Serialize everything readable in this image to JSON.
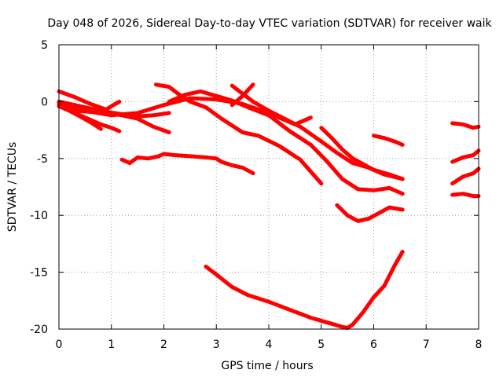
{
  "chart_data": {
    "type": "line",
    "title": "Day 048 of 2026, Sidereal Day-to-day VTEC variation (SDTVAR) for receiver waik",
    "xlabel": "GPS time / hours",
    "ylabel": "SDTVAR / TECUs",
    "xlim": [
      0,
      8
    ],
    "ylim": [
      -20,
      5
    ],
    "xticks": [
      0,
      1,
      2,
      3,
      4,
      5,
      6,
      7,
      8
    ],
    "yticks": [
      5,
      0,
      -5,
      -10,
      -15,
      -20
    ],
    "xtick_labels": [
      "0",
      "1",
      "2",
      "3",
      "4",
      "5",
      "6",
      "7",
      "8"
    ],
    "ytick_labels": [
      "5",
      "0",
      "-5",
      "-10",
      "-15",
      "-20"
    ],
    "grid": true,
    "color": "#ff0000",
    "series": [
      {
        "name": "s1",
        "x": [
          0,
          0.3,
          0.6,
          0.9,
          1.0,
          1.15
        ],
        "y": [
          0.9,
          0.4,
          -0.2,
          -0.7,
          -0.4,
          0
        ]
      },
      {
        "name": "s2",
        "x": [
          0,
          0.2,
          0.4,
          0.6,
          0.8,
          1.0,
          1.15
        ],
        "y": [
          -0.1,
          -0.6,
          -1.2,
          -1.6,
          -2.0,
          -2.3,
          -2.6
        ]
      },
      {
        "name": "s3",
        "x": [
          0,
          0.2,
          0.4,
          0.6,
          0.8
        ],
        "y": [
          -0.4,
          -0.8,
          -1.3,
          -1.8,
          -2.4
        ]
      },
      {
        "name": "s4",
        "x": [
          0,
          0.5,
          1.0,
          1.5,
          2.0,
          2.5,
          3.0,
          3.5,
          4.0,
          4.5,
          4.8
        ],
        "y": [
          -0.3,
          -0.8,
          -1.2,
          -1.0,
          -0.3,
          0.3,
          0.2,
          -0.2,
          -1.0,
          -2.0,
          -1.4
        ]
      },
      {
        "name": "s5",
        "x": [
          0,
          0.3,
          0.6,
          0.9,
          1.2,
          1.5,
          1.8,
          2.1
        ],
        "y": [
          0,
          -0.3,
          -0.6,
          -0.9,
          -1.1,
          -1.3,
          -1.2,
          -1.0
        ]
      },
      {
        "name": "s6",
        "x": [
          0.3,
          0.6,
          0.9,
          1.2,
          1.5,
          1.8,
          2.1
        ],
        "y": [
          -0.8,
          -0.9,
          -1.0,
          -1.2,
          -1.5,
          -2.2,
          -2.7
        ]
      },
      {
        "name": "s7",
        "x": [
          1.2,
          1.35,
          1.5,
          1.7,
          1.9,
          2.0,
          2.2,
          2.5,
          2.8,
          3.0,
          3.1,
          3.3,
          3.5,
          3.7
        ],
        "y": [
          -5.1,
          -5.4,
          -4.9,
          -5.0,
          -4.8,
          -4.6,
          -4.7,
          -4.8,
          -4.9,
          -5.0,
          -5.3,
          -5.6,
          -5.8,
          -6.3
        ]
      },
      {
        "name": "s8",
        "x": [
          1.85,
          2.1,
          2.3,
          2.5,
          2.8,
          3.1,
          3.5,
          3.8,
          4.2,
          4.6,
          5.0
        ],
        "y": [
          1.5,
          1.3,
          0.6,
          0,
          -0.5,
          -1.5,
          -2.7,
          -3.0,
          -3.9,
          -5.1,
          -7.2
        ]
      },
      {
        "name": "s9",
        "x": [
          2.1,
          2.4,
          2.7,
          3.0,
          3.3,
          3.6,
          4.0,
          4.4,
          4.8,
          5.1,
          5.4,
          5.7,
          6.0,
          6.3,
          6.55
        ],
        "y": [
          0,
          0.6,
          0.9,
          0.5,
          0.1,
          -0.5,
          -1.2,
          -2.6,
          -3.8,
          -5.2,
          -6.8,
          -7.7,
          -7.8,
          -7.6,
          -8.1
        ]
      },
      {
        "name": "s10",
        "x": [
          3.3,
          3.7,
          4.0,
          4.3,
          4.6,
          5.0,
          5.3,
          5.6,
          5.9,
          6.2,
          6.55
        ],
        "y": [
          1.4,
          0,
          -0.8,
          -1.5,
          -2.2,
          -3.5,
          -4.5,
          -5.4,
          -5.8,
          -6.4,
          -6.8
        ]
      },
      {
        "name": "s11",
        "x": [
          3.3,
          3.5,
          3.7
        ],
        "y": [
          -0.3,
          0.5,
          1.5
        ]
      },
      {
        "name": "s12",
        "x": [
          5.0,
          5.2,
          5.4,
          5.6,
          5.8,
          6.0,
          6.3,
          6.55
        ],
        "y": [
          -2.3,
          -3.2,
          -4.2,
          -5.0,
          -5.5,
          -6.0,
          -6.4,
          -6.8
        ]
      },
      {
        "name": "s13",
        "x": [
          5.3,
          5.5,
          5.7,
          5.9,
          6.1,
          6.3,
          6.55
        ],
        "y": [
          -9.1,
          -10.0,
          -10.5,
          -10.3,
          -9.8,
          -9.3,
          -9.5
        ]
      },
      {
        "name": "s14",
        "x": [
          2.8,
          3.0,
          3.3,
          3.6,
          4.0,
          4.4,
          4.8,
          5.1,
          5.4,
          5.5,
          5.6,
          5.8,
          6.0,
          6.2,
          6.4,
          6.55
        ],
        "y": [
          -14.5,
          -15.2,
          -16.3,
          -17.0,
          -17.6,
          -18.3,
          -19.0,
          -19.4,
          -19.8,
          -19.9,
          -19.6,
          -18.5,
          -17.2,
          -16.2,
          -14.4,
          -13.2
        ]
      },
      {
        "name": "s15",
        "x": [
          6.0,
          6.2,
          6.4,
          6.55
        ],
        "y": [
          -3.0,
          -3.2,
          -3.5,
          -3.8
        ]
      },
      {
        "name": "s16",
        "x": [
          7.5,
          7.7,
          7.9,
          8.0
        ],
        "y": [
          -1.9,
          -2.0,
          -2.3,
          -2.2
        ]
      },
      {
        "name": "s17",
        "x": [
          7.5,
          7.7,
          7.9,
          8.0
        ],
        "y": [
          -5.3,
          -4.9,
          -4.7,
          -4.3
        ]
      },
      {
        "name": "s18",
        "x": [
          7.5,
          7.7,
          7.9,
          8.0
        ],
        "y": [
          -7.2,
          -6.6,
          -6.3,
          -5.9
        ]
      },
      {
        "name": "s19",
        "x": [
          7.5,
          7.7,
          7.9,
          8.0
        ],
        "y": [
          -8.2,
          -8.1,
          -8.3,
          -8.3
        ]
      }
    ]
  }
}
